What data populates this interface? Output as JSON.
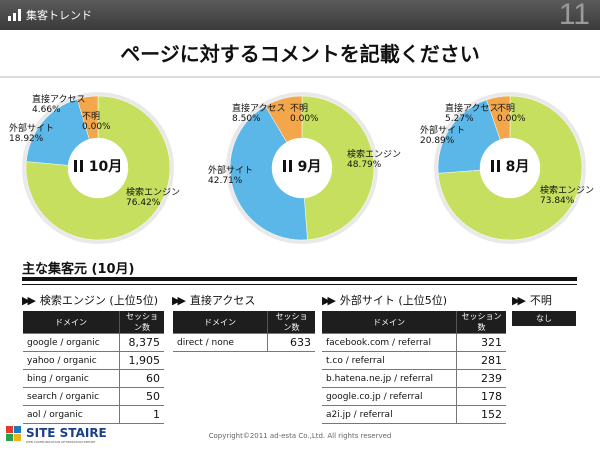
{
  "header": {
    "section": "集客トレンド",
    "page_number": "11"
  },
  "title": "ページに対するコメントを記載ください",
  "colors": {
    "search": "#c6df5f",
    "referral": "#5bb7e8",
    "direct": "#f4a64a",
    "unknown": "#e9e9e9"
  },
  "donuts": [
    {
      "month": "10月",
      "segments": [
        {
          "label": "不明",
          "pct": "0.00%",
          "value": 0.0,
          "color": "#e9e9e9"
        },
        {
          "label": "検索エンジン",
          "pct": "76.42%",
          "value": 76.42,
          "color": "#c6df5f"
        },
        {
          "label": "外部サイト",
          "pct": "18.92%",
          "value": 18.92,
          "color": "#5bb7e8"
        },
        {
          "label": "直接アクセス",
          "pct": "4.66%",
          "value": 4.66,
          "color": "#f4a64a"
        }
      ]
    },
    {
      "month": "9月",
      "segments": [
        {
          "label": "不明",
          "pct": "0.00%",
          "value": 0.0,
          "color": "#e9e9e9"
        },
        {
          "label": "検索エンジン",
          "pct": "48.79%",
          "value": 48.79,
          "color": "#c6df5f"
        },
        {
          "label": "外部サイト",
          "pct": "42.71%",
          "value": 42.71,
          "color": "#5bb7e8"
        },
        {
          "label": "直接アクセス",
          "pct": "8.50%",
          "value": 8.5,
          "color": "#f4a64a"
        }
      ]
    },
    {
      "month": "8月",
      "segments": [
        {
          "label": "不明",
          "pct": "0.00%",
          "value": 0.0,
          "color": "#e9e9e9"
        },
        {
          "label": "検索エンジン",
          "pct": "73.84%",
          "value": 73.84,
          "color": "#c6df5f"
        },
        {
          "label": "外部サイト",
          "pct": "20.89%",
          "value": 20.89,
          "color": "#5bb7e8"
        },
        {
          "label": "直接アクセス",
          "pct": "5.27%",
          "value": 5.27,
          "color": "#f4a64a"
        }
      ]
    }
  ],
  "sources_title": "主な集客元 (10月)",
  "categories": {
    "search": "検索エンジン (上位5位)",
    "direct": "直接アクセス",
    "referral": "外部サイト (上位5位)",
    "unknown": "不明"
  },
  "table_headers": {
    "domain": "ドメイン",
    "sessions": "セッション数",
    "none": "なし"
  },
  "search_rows": [
    {
      "domain": "google / organic",
      "sessions": "8,375"
    },
    {
      "domain": "yahoo / organic",
      "sessions": "1,905"
    },
    {
      "domain": "bing / organic",
      "sessions": "60"
    },
    {
      "domain": "search / organic",
      "sessions": "50"
    },
    {
      "domain": "aol / organic",
      "sessions": "1"
    }
  ],
  "direct_rows": [
    {
      "domain": "direct / none",
      "sessions": "633"
    }
  ],
  "referral_rows": [
    {
      "domain": "facebook.com / referral",
      "sessions": "321"
    },
    {
      "domain": "t.co / referral",
      "sessions": "281"
    },
    {
      "domain": "b.hatena.ne.jp / referral",
      "sessions": "239"
    },
    {
      "domain": "google.co.jp / referral",
      "sessions": "178"
    },
    {
      "domain": "a2i.jp / referral",
      "sessions": "152"
    }
  ],
  "footer": {
    "logo": "SITE STAIRE",
    "logo_tagline": "WEB COMMUNICATION OPTIMIZATION REPORT",
    "copyright": "Copyright©2011 ad-esta Co.,Ltd. All rights reserved"
  }
}
